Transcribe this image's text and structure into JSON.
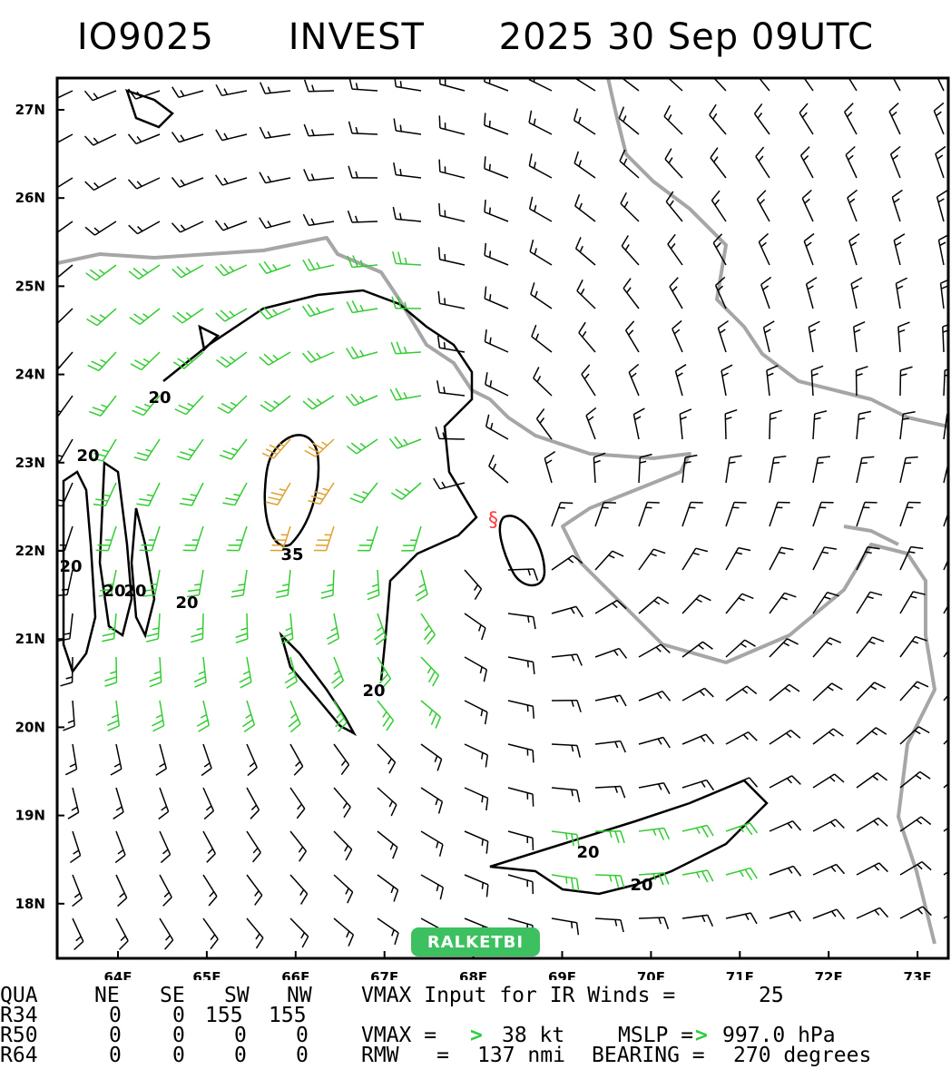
{
  "title": {
    "id": "IO9025",
    "name": "INVEST",
    "datetime": "2025 30 Sep 09UTC"
  },
  "map": {
    "lat_labels": [
      "27N",
      "26N",
      "25N",
      "24N",
      "23N",
      "22N",
      "21N",
      "20N",
      "19N",
      "18N"
    ],
    "lon_labels": [
      "64E",
      "65E",
      "66E",
      "67E",
      "68E",
      "69E",
      "70E",
      "71E",
      "72E",
      "73E"
    ],
    "contour_labels": [
      "20",
      "20",
      "20",
      "20",
      "20",
      "20",
      "35",
      "20",
      "20",
      "20"
    ],
    "storm_center": {
      "lat": 22.3,
      "lon": 68.2
    },
    "colors": {
      "light_wind": "#000000",
      "gale_wind": "#33cc33",
      "strong_wind": "#e0a030",
      "coast": "#a6a6a6",
      "center": "#ff3b3b"
    }
  },
  "watermark": "RALKETBI",
  "table": {
    "headers": [
      "QUA",
      "NE",
      "SE",
      "SW",
      "NW"
    ],
    "rows": [
      {
        "label": "R34",
        "values": [
          "0",
          "0",
          "155",
          "155"
        ]
      },
      {
        "label": "R50",
        "values": [
          "0",
          "0",
          "0",
          "0"
        ]
      },
      {
        "label": "R64",
        "values": [
          "0",
          "0",
          "0",
          "0"
        ]
      }
    ],
    "vmax_ir_text": "VMAX Input for IR Winds =",
    "vmax_ir_value": "25",
    "vmax_label": "VMAX =",
    "vmax_value": "38 kt",
    "mslp_label": "MSLP =",
    "mslp_value": "997.0 hPa",
    "rmw_label": "RMW   =",
    "rmw_value": "137 nmi",
    "bearing_label": "BEARING =",
    "bearing_value": "270 degrees"
  }
}
